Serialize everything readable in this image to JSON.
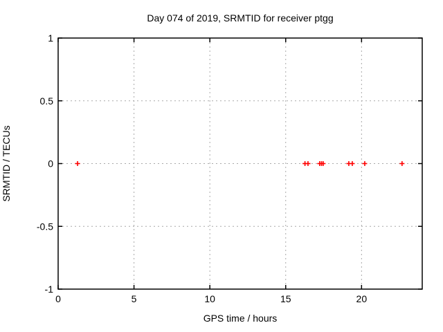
{
  "chart_data": {
    "type": "scatter",
    "title": "Day 074 of 2019, SRMTID for receiver ptgg",
    "xlabel": "GPS time / hours",
    "ylabel": "SRMTID / TECUs",
    "xlim": [
      0,
      24
    ],
    "ylim": [
      -1,
      1
    ],
    "xticks": [
      0,
      5,
      10,
      15,
      20
    ],
    "yticks": [
      -1,
      -0.5,
      0,
      0.5,
      1
    ],
    "grid": true,
    "legend": "none",
    "series": [
      {
        "name": "SRMTID",
        "marker": "plus",
        "color": "#ff0000",
        "x": [
          1.28,
          16.27,
          16.47,
          17.24,
          17.36,
          17.47,
          19.16,
          19.39,
          20.21,
          22.67
        ],
        "y": [
          0,
          0,
          0,
          0,
          0,
          0,
          0,
          0,
          0,
          0
        ]
      }
    ],
    "colors": {
      "background": "#ffffff",
      "axis": "#000000",
      "grid": "#a8a8a8",
      "text": "#000000",
      "marker": "#ff0000"
    }
  }
}
